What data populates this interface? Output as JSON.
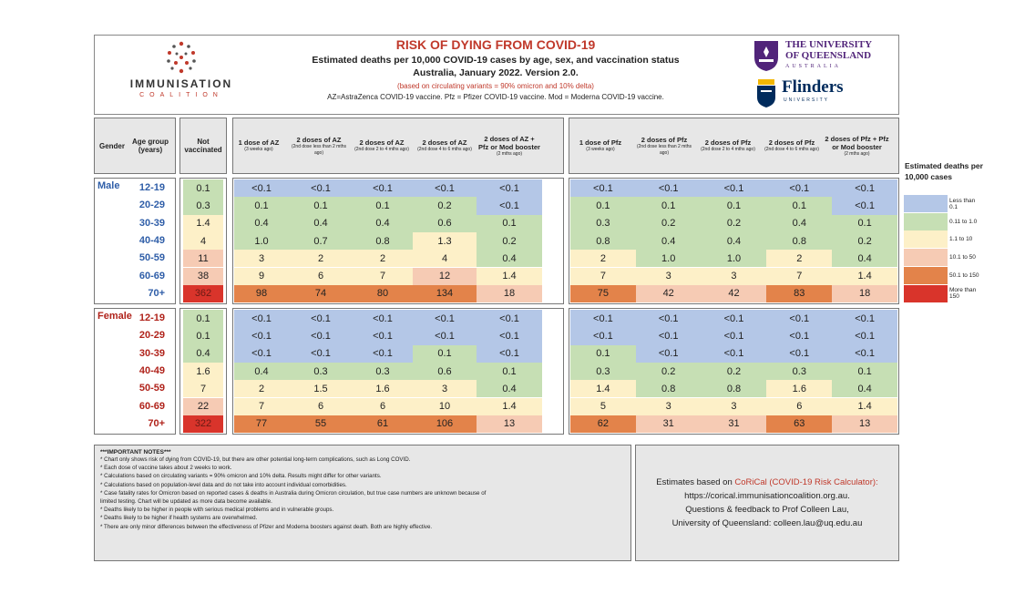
{
  "header": {
    "org_name": "IMMUNISATION",
    "org_sub": "COALITION",
    "title": "RISK OF DYING FROM COVID-19",
    "subtitle": "Estimated deaths per 10,000 COVID-19 cases by age, sex, and vaccination status",
    "location": "Australia, January 2022.  Version 2.0.",
    "variant_note": "(based on circulating variants = 90% omicron and 10% delta)",
    "vaccine_key": "AZ=AstraZenca COVID-19 vaccine.  Pfz = Pfizer COVID-19 vaccine. Mod = Moderna COVID-19 vaccine.",
    "uq_line1": "THE UNIVERSITY",
    "uq_line2": "OF QUEENSLAND",
    "uq_line3": "AUSTRALIA",
    "flinders": "Flinders",
    "flinders_sub": "UNIVERSITY"
  },
  "columns": {
    "gender": "Gender",
    "age": "Age group (years)",
    "not_vacc": "Not vaccinated",
    "az": [
      {
        "title": "1 dose of AZ",
        "sub": "(3 weeks ago)"
      },
      {
        "title": "2 doses of AZ",
        "sub": "(2nd dose less than 2 mths ago)"
      },
      {
        "title": "2 doses of AZ",
        "sub": "(2nd dose 2 to 4 mths ago)"
      },
      {
        "title": "2 doses of AZ",
        "sub": "(2nd dose 4 to 6 mths ago)"
      },
      {
        "title": "2 doses of AZ + Pfz or Mod booster",
        "sub": "(2 mths ago)"
      }
    ],
    "pfz": [
      {
        "title": "1 dose of Pfz",
        "sub": "(3 weeks ago)"
      },
      {
        "title": "2 doses of Pfz",
        "sub": "(2nd dose less than 2 mths ago)"
      },
      {
        "title": "2 doses of Pfz",
        "sub": "(2nd dose 2 to 4 mths ago)"
      },
      {
        "title": "2 doses of Pfz",
        "sub": "(2nd dose 4 to 6 mths ago)"
      },
      {
        "title": "2 doses of Pfz + Pfz or Mod booster",
        "sub": "(2 mths ago)"
      }
    ]
  },
  "male": {
    "label": "Male",
    "ages": [
      "12-19",
      "20-29",
      "30-39",
      "40-49",
      "50-59",
      "60-69",
      "70+"
    ],
    "not_vacc": [
      "0.1",
      "0.3",
      "1.4",
      "4",
      "11",
      "38",
      "362"
    ],
    "az": [
      [
        "<0.1",
        "<0.1",
        "<0.1",
        "<0.1",
        "<0.1"
      ],
      [
        "0.1",
        "0.1",
        "0.1",
        "0.2",
        "<0.1"
      ],
      [
        "0.4",
        "0.4",
        "0.4",
        "0.6",
        "0.1"
      ],
      [
        "1.0",
        "0.7",
        "0.8",
        "1.3",
        "0.2"
      ],
      [
        "3",
        "2",
        "2",
        "4",
        "0.4"
      ],
      [
        "9",
        "6",
        "7",
        "12",
        "1.4"
      ],
      [
        "98",
        "74",
        "80",
        "134",
        "18"
      ]
    ],
    "pfz": [
      [
        "<0.1",
        "<0.1",
        "<0.1",
        "<0.1",
        "<0.1"
      ],
      [
        "0.1",
        "0.1",
        "0.1",
        "0.1",
        "<0.1"
      ],
      [
        "0.3",
        "0.2",
        "0.2",
        "0.4",
        "0.1"
      ],
      [
        "0.8",
        "0.4",
        "0.4",
        "0.8",
        "0.2"
      ],
      [
        "2",
        "1.0",
        "1.0",
        "2",
        "0.4"
      ],
      [
        "7",
        "3",
        "3",
        "7",
        "1.4"
      ],
      [
        "75",
        "42",
        "42",
        "83",
        "18"
      ]
    ]
  },
  "female": {
    "label": "Female",
    "ages": [
      "12-19",
      "20-29",
      "30-39",
      "40-49",
      "50-59",
      "60-69",
      "70+"
    ],
    "not_vacc": [
      "0.1",
      "0.1",
      "0.4",
      "1.6",
      "7",
      "22",
      "322"
    ],
    "az": [
      [
        "<0.1",
        "<0.1",
        "<0.1",
        "<0.1",
        "<0.1"
      ],
      [
        "<0.1",
        "<0.1",
        "<0.1",
        "<0.1",
        "<0.1"
      ],
      [
        "<0.1",
        "<0.1",
        "<0.1",
        "0.1",
        "<0.1"
      ],
      [
        "0.4",
        "0.3",
        "0.3",
        "0.6",
        "0.1"
      ],
      [
        "2",
        "1.5",
        "1.6",
        "3",
        "0.4"
      ],
      [
        "7",
        "6",
        "6",
        "10",
        "1.4"
      ],
      [
        "77",
        "55",
        "61",
        "106",
        "13"
      ]
    ],
    "pfz": [
      [
        "<0.1",
        "<0.1",
        "<0.1",
        "<0.1",
        "<0.1"
      ],
      [
        "<0.1",
        "<0.1",
        "<0.1",
        "<0.1",
        "<0.1"
      ],
      [
        "0.1",
        "<0.1",
        "<0.1",
        "<0.1",
        "<0.1"
      ],
      [
        "0.3",
        "0.2",
        "0.2",
        "0.3",
        "0.1"
      ],
      [
        "1.4",
        "0.8",
        "0.8",
        "1.6",
        "0.4"
      ],
      [
        "5",
        "3",
        "3",
        "6",
        "1.4"
      ],
      [
        "62",
        "31",
        "31",
        "63",
        "13"
      ]
    ]
  },
  "legend": {
    "title": "Estimated deaths per 10,000 cases",
    "items": [
      {
        "label": "Less than 0.1",
        "color": "#b4c7e7"
      },
      {
        "label": "0.11 to 1.0",
        "color": "#c6dfb4"
      },
      {
        "label": "1.1 to 10",
        "color": "#fdf0c8"
      },
      {
        "label": "10.1 to 50",
        "color": "#f6cbb4"
      },
      {
        "label": "50.1 to 150",
        "color": "#e3834a"
      },
      {
        "label": "More than 150",
        "color": "#d9342b"
      }
    ]
  },
  "colors": {
    "male": "#2f5ea8",
    "female": "#b0231b",
    "brand_red": "#c0392b"
  },
  "notes": {
    "title": "***IMPORTANT NOTES***",
    "items": [
      "* Chart only shows risk of dying from COVID-19, but there are other potential long-term complications, such as Long COVID.",
      "* Each dose of vaccine takes about 2 weeks to work.",
      "* Calculations based on circulating variants = 90% omicron and 10% delta. Results might differ for other variants.",
      "* Calculations based on population-level data and do not take into account individual comorbidities.",
      "* Case fatality rates for Omicron based on reported cases & deaths in Australia during Omicron circulation, but true case numbers are unknown because of",
      "limited testing.  Chart will be updated as more data become available.",
      "* Deaths likely to be higher in people with serious medical problems and in vulnerable groups.",
      "* Deaths likely to be higher if health systems are overwhelmed.",
      "* There are only minor differences between the effectiveness of Pfizer and Moderna boosters against death. Both are highly effective."
    ]
  },
  "credit": {
    "prefix": "Estimates based on ",
    "calc": "CoRiCal (COVID-19 Risk Calculator):",
    "url": "https://corical.immunisationcoalition.org.au.",
    "line3": "Questions & feedback to Prof Colleen Lau,",
    "line4": "University of Queensland: colleen.lau@uq.edu.au"
  }
}
